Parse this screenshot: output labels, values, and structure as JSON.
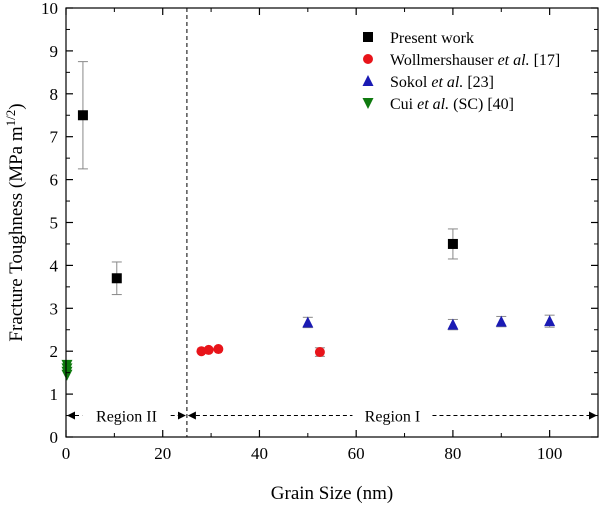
{
  "chart_data": {
    "type": "scatter",
    "xlabel": "Grain Size (nm)",
    "ylabel": "Fracture Toughness (MPa m",
    "ylabel_sup": "1/2",
    "ylabel_close": ")",
    "xlim": [
      0,
      110
    ],
    "ylim": [
      0,
      10
    ],
    "x_ticks": [
      0,
      20,
      40,
      60,
      80,
      100
    ],
    "x_tick_labels": [
      "0",
      "20",
      "40",
      "60",
      "80",
      "100"
    ],
    "y_ticks": [
      0,
      1,
      2,
      3,
      4,
      5,
      6,
      7,
      8,
      9,
      10
    ],
    "y_tick_labels": [
      "0",
      "1",
      "2",
      "3",
      "4",
      "5",
      "6",
      "7",
      "8",
      "9",
      "10"
    ],
    "grid": false,
    "legend_position": "top-right",
    "legend": [
      {
        "parts": [
          "Present work"
        ],
        "italic": [
          false
        ]
      },
      {
        "parts": [
          "Wollmershauser ",
          "et al.",
          " [17]"
        ],
        "italic": [
          false,
          true,
          false
        ]
      },
      {
        "parts": [
          "Sokol ",
          "et al.",
          " [23]"
        ],
        "italic": [
          false,
          true,
          false
        ]
      },
      {
        "parts": [
          "Cui ",
          "et al.",
          " (SC) [40]"
        ],
        "italic": [
          false,
          true,
          false
        ]
      }
    ],
    "series": [
      {
        "marker": "square",
        "color": "#000000",
        "points": [
          {
            "x": 3.5,
            "y": 7.5,
            "err": 1.25
          },
          {
            "x": 10.5,
            "y": 3.7,
            "err": 0.38
          },
          {
            "x": 80,
            "y": 4.5,
            "err": 0.35
          }
        ]
      },
      {
        "marker": "circle",
        "color": "#e8141a",
        "points": [
          {
            "x": 28,
            "y": 2.0,
            "err": 0.0
          },
          {
            "x": 29.5,
            "y": 2.03,
            "err": 0.0
          },
          {
            "x": 31.5,
            "y": 2.05,
            "err": 0.0
          },
          {
            "x": 52.5,
            "y": 1.98,
            "err": 0.1
          }
        ]
      },
      {
        "marker": "triangle-up",
        "color": "#1a1ab4",
        "points": [
          {
            "x": 50,
            "y": 2.67,
            "err": 0.12
          },
          {
            "x": 80,
            "y": 2.62,
            "err": 0.12
          },
          {
            "x": 90,
            "y": 2.69,
            "err": 0.12
          },
          {
            "x": 100,
            "y": 2.7,
            "err": 0.14
          }
        ]
      },
      {
        "marker": "triangle-down",
        "color": "#0f7a0f",
        "points": [
          {
            "x": 0.2,
            "y": 1.68,
            "err": 0
          },
          {
            "x": 0.2,
            "y": 1.6,
            "err": 0
          },
          {
            "x": 0.2,
            "y": 1.52,
            "err": 0
          },
          {
            "x": 0.2,
            "y": 1.45,
            "err": 0
          }
        ]
      }
    ],
    "divider_x": 25,
    "regions": [
      {
        "label": "Region II",
        "x_from": 0,
        "x_to": 25,
        "y": 0.5
      },
      {
        "label": "Region I",
        "x_from": 25,
        "x_to": 110,
        "y": 0.5
      }
    ]
  }
}
